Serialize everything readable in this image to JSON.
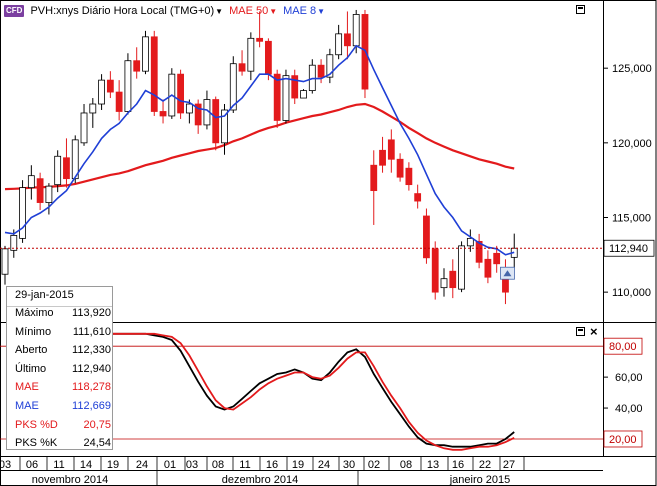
{
  "header": {
    "badge": "CFD",
    "symbol": "PVH:xnys Diário Hora Local (TMG+0)",
    "mae50_label": "MAE 50",
    "mae8_label": "MAE 8",
    "caret": "▼"
  },
  "colors": {
    "up_candle": "#ffffff",
    "down_candle": "#e31a1c",
    "mae50": "#e31a1c",
    "mae8": "#1f3fd6",
    "pks_d": "#e31a1c",
    "pks_k": "#000000",
    "last_price_line": "#c00000"
  },
  "info_panel": {
    "date": "29-jan-2015",
    "rows": [
      {
        "label": "Máximo",
        "value": "113,920",
        "color": "#000000"
      },
      {
        "label": "Mínimo",
        "value": "111,610",
        "color": "#000000"
      },
      {
        "label": "Aberto",
        "value": "112,330",
        "color": "#000000"
      },
      {
        "label": "Último",
        "value": "112,940",
        "color": "#000000"
      },
      {
        "label": "MAE",
        "value": "118,278",
        "color": "#e31a1c"
      },
      {
        "label": "MAE",
        "value": "112,669",
        "color": "#1f3fd6"
      },
      {
        "label": "PKS %D",
        "value": "20,75",
        "color": "#e31a1c"
      },
      {
        "label": "PKS %K",
        "value": "24,54",
        "color": "#000000"
      }
    ]
  },
  "chart_data": [
    {
      "type": "candlestick",
      "title": "PVH:xnys Diário Hora Local (TMG+0)",
      "y_ticks": [
        "125,000",
        "120,000",
        "115,000",
        "110,000"
      ],
      "y_tick_values": [
        125,
        120,
        115,
        110
      ],
      "ylim": [
        108.0,
        129.5
      ],
      "last_price": 112.94,
      "last_price_label": "112,940",
      "candles": [
        {
          "o": 111.2,
          "h": 113.1,
          "l": 110.5,
          "c": 112.9
        },
        {
          "o": 112.8,
          "h": 114.2,
          "l": 112.3,
          "c": 113.8
        },
        {
          "o": 113.6,
          "h": 117.5,
          "l": 113.3,
          "c": 117.0
        },
        {
          "o": 117.0,
          "h": 118.5,
          "l": 116.2,
          "c": 117.8
        },
        {
          "o": 117.6,
          "h": 118.0,
          "l": 115.5,
          "c": 116.0
        },
        {
          "o": 116.0,
          "h": 117.3,
          "l": 115.2,
          "c": 117.1
        },
        {
          "o": 117.2,
          "h": 119.5,
          "l": 116.7,
          "c": 119.1
        },
        {
          "o": 119.0,
          "h": 120.3,
          "l": 117.0,
          "c": 117.6
        },
        {
          "o": 117.6,
          "h": 120.5,
          "l": 117.3,
          "c": 120.2
        },
        {
          "o": 120.0,
          "h": 122.6,
          "l": 119.8,
          "c": 122.0
        },
        {
          "o": 122.0,
          "h": 123.0,
          "l": 121.0,
          "c": 122.6
        },
        {
          "o": 122.6,
          "h": 124.6,
          "l": 122.2,
          "c": 124.2
        },
        {
          "o": 124.2,
          "h": 124.8,
          "l": 123.0,
          "c": 123.4
        },
        {
          "o": 123.4,
          "h": 124.2,
          "l": 121.5,
          "c": 122.1
        },
        {
          "o": 122.1,
          "h": 126.0,
          "l": 121.9,
          "c": 125.5
        },
        {
          "o": 125.5,
          "h": 126.4,
          "l": 124.3,
          "c": 124.8
        },
        {
          "o": 124.8,
          "h": 127.5,
          "l": 124.6,
          "c": 127.1
        },
        {
          "o": 127.1,
          "h": 127.5,
          "l": 121.8,
          "c": 122.1
        },
        {
          "o": 122.1,
          "h": 122.9,
          "l": 121.3,
          "c": 121.8
        },
        {
          "o": 121.8,
          "h": 125.0,
          "l": 121.6,
          "c": 124.6
        },
        {
          "o": 124.6,
          "h": 124.9,
          "l": 121.6,
          "c": 122.0
        },
        {
          "o": 122.0,
          "h": 122.9,
          "l": 121.3,
          "c": 122.6
        },
        {
          "o": 122.6,
          "h": 122.9,
          "l": 120.6,
          "c": 121.2
        },
        {
          "o": 121.2,
          "h": 123.5,
          "l": 120.9,
          "c": 122.9
        },
        {
          "o": 122.9,
          "h": 123.1,
          "l": 119.5,
          "c": 120.0
        },
        {
          "o": 120.0,
          "h": 122.6,
          "l": 119.2,
          "c": 122.2
        },
        {
          "o": 122.2,
          "h": 125.8,
          "l": 122.0,
          "c": 125.3
        },
        {
          "o": 125.3,
          "h": 126.2,
          "l": 124.5,
          "c": 124.8
        },
        {
          "o": 124.8,
          "h": 127.4,
          "l": 124.2,
          "c": 127.0
        },
        {
          "o": 127.0,
          "h": 128.8,
          "l": 126.4,
          "c": 126.8
        },
        {
          "o": 126.8,
          "h": 127.0,
          "l": 124.2,
          "c": 124.6
        },
        {
          "o": 124.6,
          "h": 124.9,
          "l": 121.0,
          "c": 121.5
        },
        {
          "o": 121.5,
          "h": 124.9,
          "l": 121.3,
          "c": 124.5
        },
        {
          "o": 124.5,
          "h": 124.9,
          "l": 122.6,
          "c": 123.0
        },
        {
          "o": 123.0,
          "h": 123.6,
          "l": 123.0,
          "c": 123.5
        },
        {
          "o": 123.5,
          "h": 125.6,
          "l": 123.3,
          "c": 125.2
        },
        {
          "o": 125.2,
          "h": 125.6,
          "l": 124.0,
          "c": 124.4
        },
        {
          "o": 124.4,
          "h": 126.3,
          "l": 124.0,
          "c": 125.9
        },
        {
          "o": 125.9,
          "h": 127.9,
          "l": 125.6,
          "c": 127.3
        },
        {
          "o": 127.3,
          "h": 128.8,
          "l": 125.6,
          "c": 126.5
        },
        {
          "o": 126.5,
          "h": 128.9,
          "l": 126.0,
          "c": 128.6
        },
        {
          "o": 128.6,
          "h": 128.9,
          "l": 123.0,
          "c": 123.6
        },
        {
          "o": 118.5,
          "h": 119.5,
          "l": 114.5,
          "c": 116.8
        },
        {
          "o": 119.5,
          "h": 120.4,
          "l": 118.0,
          "c": 118.5
        },
        {
          "o": 120.2,
          "h": 120.9,
          "l": 118.0,
          "c": 118.9
        },
        {
          "o": 118.9,
          "h": 119.3,
          "l": 117.4,
          "c": 117.7
        },
        {
          "o": 118.3,
          "h": 118.7,
          "l": 116.8,
          "c": 117.2
        },
        {
          "o": 116.6,
          "h": 117.2,
          "l": 115.6,
          "c": 116.1
        },
        {
          "o": 115.1,
          "h": 115.6,
          "l": 111.9,
          "c": 112.3
        },
        {
          "o": 112.9,
          "h": 113.4,
          "l": 109.5,
          "c": 110.0
        },
        {
          "o": 110.3,
          "h": 111.6,
          "l": 109.7,
          "c": 110.9
        },
        {
          "o": 111.4,
          "h": 112.2,
          "l": 109.6,
          "c": 110.3
        },
        {
          "o": 110.2,
          "h": 113.4,
          "l": 110.0,
          "c": 113.1
        },
        {
          "o": 113.1,
          "h": 114.2,
          "l": 112.7,
          "c": 113.6
        },
        {
          "o": 113.4,
          "h": 113.9,
          "l": 111.6,
          "c": 112.0
        },
        {
          "o": 112.2,
          "h": 112.8,
          "l": 110.6,
          "c": 111.0
        },
        {
          "o": 112.6,
          "h": 113.1,
          "l": 111.3,
          "c": 111.9
        },
        {
          "o": 111.5,
          "h": 112.2,
          "l": 109.2,
          "c": 110.0
        },
        {
          "o": 112.33,
          "h": 113.92,
          "l": 111.61,
          "c": 112.94
        }
      ],
      "mae50": [
        116.9,
        116.92,
        116.95,
        117.0,
        117.02,
        117.05,
        117.1,
        117.15,
        117.25,
        117.4,
        117.55,
        117.7,
        117.85,
        117.95,
        118.1,
        118.3,
        118.5,
        118.65,
        118.8,
        119.0,
        119.15,
        119.3,
        119.45,
        119.55,
        119.65,
        119.85,
        120.1,
        120.3,
        120.55,
        120.8,
        121.0,
        121.15,
        121.35,
        121.5,
        121.65,
        121.8,
        121.9,
        122.05,
        122.2,
        122.4,
        122.55,
        122.6,
        122.4,
        122.1,
        121.75,
        121.4,
        121.0,
        120.65,
        120.3,
        120.0,
        119.75,
        119.5,
        119.3,
        119.1,
        118.9,
        118.75,
        118.6,
        118.4,
        118.28
      ],
      "mae8": [
        114.0,
        113.9,
        114.3,
        115.0,
        115.3,
        115.7,
        116.3,
        116.8,
        117.7,
        118.6,
        119.4,
        120.3,
        120.9,
        121.3,
        122.0,
        122.6,
        123.5,
        123.2,
        122.8,
        123.2,
        122.8,
        122.7,
        122.3,
        122.2,
        121.7,
        121.8,
        122.5,
        123.0,
        123.8,
        124.6,
        124.6,
        124.2,
        124.3,
        124.2,
        124.1,
        124.3,
        124.3,
        124.6,
        125.2,
        125.7,
        126.5,
        126.2,
        124.9,
        123.7,
        122.5,
        121.3,
        120.3,
        119.2,
        117.9,
        116.6,
        115.7,
        115.0,
        114.1,
        113.7,
        113.3,
        113.0,
        112.9,
        112.5,
        112.67
      ]
    },
    {
      "type": "line",
      "title": "PKS",
      "y_ticks": [
        "60,00",
        "40,00"
      ],
      "y_tick_values": [
        60,
        40
      ],
      "levels": [
        80,
        20
      ],
      "level_labels": [
        "80,00",
        "20,00"
      ],
      "ylim": [
        9,
        95
      ],
      "series": [
        {
          "name": "PKS %K",
          "values": [
            89,
            88,
            88,
            88,
            88,
            88,
            88,
            87,
            86,
            84,
            77,
            67,
            57,
            48,
            41,
            39,
            41,
            46,
            51,
            56,
            59,
            62,
            63,
            65,
            63,
            59,
            58,
            63,
            70,
            76,
            78,
            73,
            62,
            53,
            44,
            36,
            28,
            21,
            17,
            16,
            16,
            15,
            15,
            15,
            16,
            17,
            17,
            20,
            24.54
          ]
        },
        {
          "name": "PKS %D",
          "values": [
            88,
            88,
            88,
            88,
            88,
            88,
            88,
            88,
            87,
            86,
            82,
            74,
            64,
            54,
            45,
            40,
            39,
            43,
            47,
            52,
            56,
            59,
            61,
            63,
            63,
            60,
            59,
            61,
            66,
            72,
            76,
            76,
            67,
            57,
            48,
            40,
            31,
            24,
            19,
            16,
            14,
            13,
            13,
            14,
            15,
            15,
            16,
            18,
            20.75
          ]
        }
      ]
    }
  ],
  "x_axis": {
    "ticks": [
      "03",
      "06",
      "11",
      "14",
      "19",
      "24",
      "01",
      "03",
      "08",
      "11",
      "16",
      "19",
      "24",
      "30",
      "02",
      "08",
      "13",
      "16",
      "22",
      "27"
    ],
    "months": [
      "novembro 2014",
      "dezembro 2014",
      "janeiro 2015"
    ]
  }
}
